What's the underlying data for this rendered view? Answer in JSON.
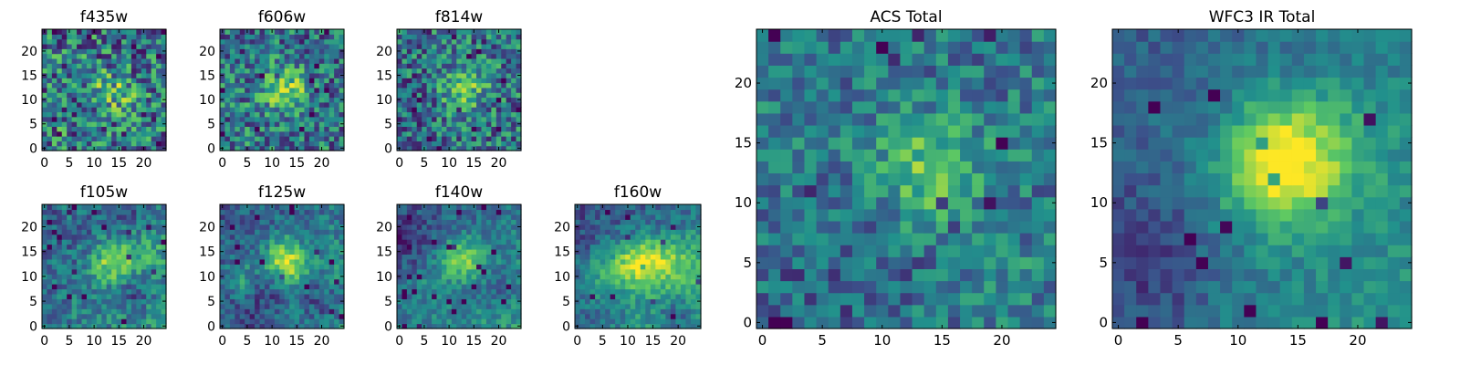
{
  "colormap": {
    "name": "viridis",
    "stops": [
      "#440154",
      "#3b528b",
      "#21918c",
      "#5ec962",
      "#fde725"
    ]
  },
  "chart_data": [
    {
      "type": "heatmap",
      "title": "f435w",
      "grid_size": 25,
      "xlim": [
        -0.5,
        24.5
      ],
      "ylim": [
        -0.5,
        24.5
      ],
      "xticks": [
        0,
        5,
        10,
        15,
        20
      ],
      "yticks": [
        0,
        5,
        10,
        15,
        20
      ],
      "center": [
        14,
        12
      ],
      "peak": 0.25,
      "noise": 0.36,
      "structure": 0.06,
      "gradient": [
        0,
        0
      ],
      "seed": 11
    },
    {
      "type": "heatmap",
      "title": "f606w",
      "grid_size": 25,
      "xlim": [
        -0.5,
        24.5
      ],
      "ylim": [
        -0.5,
        24.5
      ],
      "xticks": [
        0,
        5,
        10,
        15,
        20
      ],
      "yticks": [
        0,
        5,
        10,
        15,
        20
      ],
      "center": [
        13,
        12
      ],
      "peak": 0.32,
      "noise": 0.3,
      "structure": 0.08,
      "gradient": [
        0,
        0
      ],
      "seed": 23
    },
    {
      "type": "heatmap",
      "title": "f814w",
      "grid_size": 25,
      "xlim": [
        -0.5,
        24.5
      ],
      "ylim": [
        -0.5,
        24.5
      ],
      "xticks": [
        0,
        5,
        10,
        15,
        20
      ],
      "yticks": [
        0,
        5,
        10,
        15,
        20
      ],
      "center": [
        13,
        12
      ],
      "peak": 0.32,
      "noise": 0.3,
      "structure": 0.1,
      "gradient": [
        0,
        0
      ],
      "seed": 37
    },
    {
      "type": "heatmap",
      "title": "f105w",
      "grid_size": 25,
      "xlim": [
        -0.5,
        24.5
      ],
      "ylim": [
        -0.5,
        24.5
      ],
      "xticks": [
        0,
        5,
        10,
        15,
        20
      ],
      "yticks": [
        0,
        5,
        10,
        15,
        20
      ],
      "center": [
        14,
        13
      ],
      "peak": 0.42,
      "noise": 0.18,
      "structure": 0.2,
      "gradient": [
        0.12,
        0
      ],
      "seed": 41
    },
    {
      "type": "heatmap",
      "title": "f125w",
      "grid_size": 25,
      "xlim": [
        -0.5,
        24.5
      ],
      "ylim": [
        -0.5,
        24.5
      ],
      "xticks": [
        0,
        5,
        10,
        15,
        20
      ],
      "yticks": [
        0,
        5,
        10,
        15,
        20
      ],
      "center": [
        13,
        12
      ],
      "peak": 0.46,
      "noise": 0.16,
      "structure": 0.24,
      "gradient": [
        0.14,
        0
      ],
      "seed": 53
    },
    {
      "type": "heatmap",
      "title": "f140w",
      "grid_size": 25,
      "xlim": [
        -0.5,
        24.5
      ],
      "ylim": [
        -0.5,
        24.5
      ],
      "xticks": [
        0,
        5,
        10,
        15,
        20
      ],
      "yticks": [
        0,
        5,
        10,
        15,
        20
      ],
      "center": [
        13,
        13
      ],
      "peak": 0.5,
      "noise": 0.14,
      "structure": 0.26,
      "gradient": [
        0.14,
        0
      ],
      "seed": 67
    },
    {
      "type": "heatmap",
      "title": "f160w",
      "grid_size": 25,
      "xlim": [
        -0.5,
        24.5
      ],
      "ylim": [
        -0.5,
        24.5
      ],
      "xticks": [
        0,
        5,
        10,
        15,
        20
      ],
      "yticks": [
        0,
        5,
        10,
        15,
        20
      ],
      "center": [
        13,
        13
      ],
      "peak": 0.48,
      "noise": 0.14,
      "structure": 0.3,
      "gradient": [
        0.14,
        -0.04
      ],
      "seed": 79
    },
    {
      "type": "heatmap",
      "title": "ACS Total",
      "grid_size": 25,
      "xlim": [
        -0.5,
        24.5
      ],
      "ylim": [
        -0.5,
        24.5
      ],
      "xticks": [
        0,
        5,
        10,
        15,
        20
      ],
      "yticks": [
        0,
        5,
        10,
        15,
        20
      ],
      "center": [
        14,
        13
      ],
      "peak": 0.34,
      "noise": 0.2,
      "structure": 0.08,
      "gradient": [
        0,
        0
      ],
      "seed": 97
    },
    {
      "type": "heatmap",
      "title": "WFC3 IR Total",
      "grid_size": 25,
      "xlim": [
        -0.5,
        24.5
      ],
      "ylim": [
        -0.5,
        24.5
      ],
      "xticks": [
        0,
        5,
        10,
        15,
        20
      ],
      "yticks": [
        0,
        5,
        10,
        15,
        20
      ],
      "center": [
        13,
        13
      ],
      "peak": 0.46,
      "noise": 0.1,
      "structure": 0.22,
      "gradient": [
        0.14,
        0.02
      ],
      "seed": 131
    }
  ]
}
